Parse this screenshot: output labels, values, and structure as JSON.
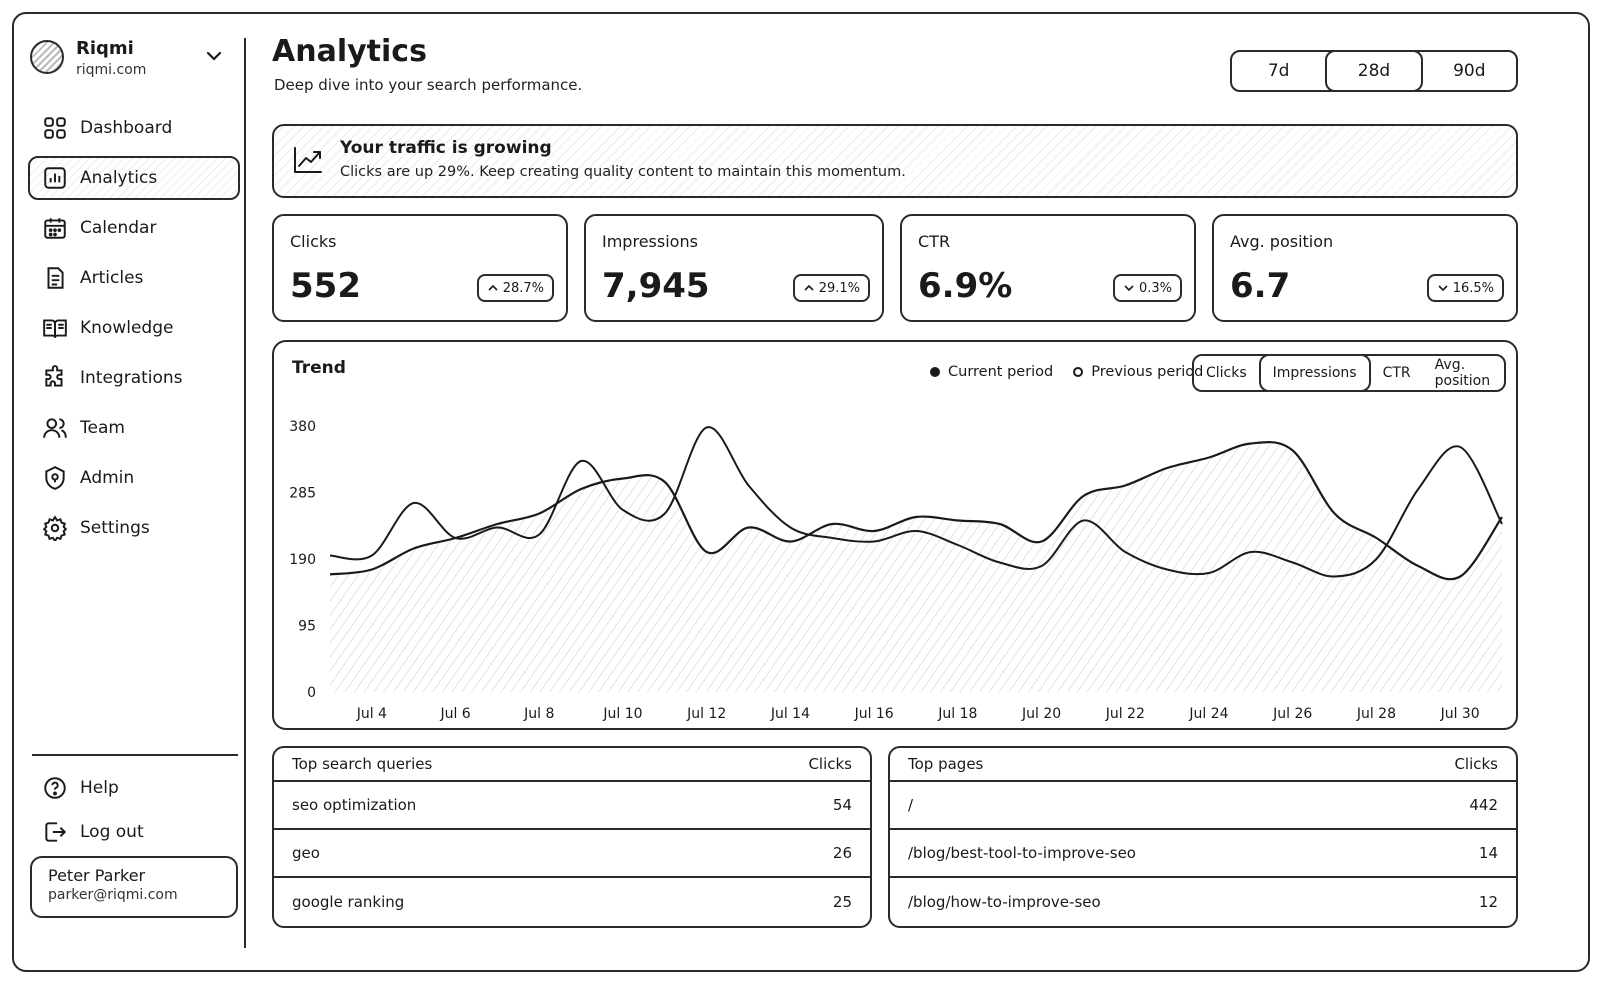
{
  "brand": {
    "name": "Riqmi",
    "domain": "riqmi.com"
  },
  "nav": [
    {
      "label": "Dashboard",
      "icon": "grid-icon"
    },
    {
      "label": "Analytics",
      "icon": "bar-chart-icon",
      "active": true
    },
    {
      "label": "Calendar",
      "icon": "calendar-icon"
    },
    {
      "label": "Articles",
      "icon": "document-icon"
    },
    {
      "label": "Knowledge",
      "icon": "book-icon"
    },
    {
      "label": "Integrations",
      "icon": "puzzle-icon"
    },
    {
      "label": "Team",
      "icon": "users-icon"
    },
    {
      "label": "Admin",
      "icon": "shield-icon"
    },
    {
      "label": "Settings",
      "icon": "gear-icon"
    }
  ],
  "bottom_nav": [
    {
      "label": "Help",
      "icon": "help-icon"
    },
    {
      "label": "Log out",
      "icon": "logout-icon"
    }
  ],
  "user": {
    "name": "Peter Parker",
    "email": "parker@riqmi.com"
  },
  "header": {
    "title": "Analytics",
    "subtitle": "Deep dive into your search performance."
  },
  "range_options": [
    "7d",
    "28d",
    "90d"
  ],
  "range_selected": "28d",
  "banner": {
    "title": "Your traffic is growing",
    "text": "Clicks are up 29%. Keep creating quality content to maintain this momentum.",
    "icon": "trending-up-icon"
  },
  "kpis": [
    {
      "label": "Clicks",
      "value": "552",
      "delta": "28.7%",
      "direction": "up"
    },
    {
      "label": "Impressions",
      "value": "7,945",
      "delta": "29.1%",
      "direction": "up"
    },
    {
      "label": "CTR",
      "value": "6.9%",
      "delta": "0.3%",
      "direction": "down"
    },
    {
      "label": "Avg. position",
      "value": "6.7",
      "delta": "16.5%",
      "direction": "down"
    }
  ],
  "trend": {
    "title": "Trend",
    "legend": {
      "current": "Current period",
      "previous": "Previous period"
    },
    "metric_tabs": [
      "Clicks",
      "Impressions",
      "CTR",
      "Avg. position"
    ],
    "metric_selected": "Impressions"
  },
  "chart_data": {
    "type": "area",
    "title": "Trend",
    "xlabel": "",
    "ylabel": "",
    "x_tick_labels": [
      "Jul 4",
      "Jul 6",
      "Jul 8",
      "Jul 10",
      "Jul 12",
      "Jul 14",
      "Jul 16",
      "Jul 18",
      "Jul 20",
      "Jul 22",
      "Jul 24",
      "Jul 26",
      "Jul 28",
      "Jul 30"
    ],
    "y_ticks": [
      0,
      95,
      190,
      285,
      380
    ],
    "ylim": [
      0,
      400
    ],
    "x": [
      3,
      4,
      5,
      6,
      7,
      8,
      9,
      10,
      11,
      12,
      13,
      14,
      15,
      16,
      17,
      18,
      19,
      20,
      21,
      22,
      23,
      24,
      25,
      26,
      27,
      28,
      29,
      30,
      31
    ],
    "series": [
      {
        "name": "Current period",
        "fill": true,
        "values": [
          168,
          175,
          205,
          220,
          240,
          255,
          290,
          305,
          300,
          200,
          235,
          215,
          240,
          230,
          250,
          245,
          240,
          215,
          280,
          295,
          320,
          335,
          355,
          345,
          255,
          220,
          180,
          165,
          250
        ]
      },
      {
        "name": "Previous period",
        "fill": false,
        "values": [
          195,
          195,
          270,
          220,
          235,
          225,
          330,
          260,
          255,
          378,
          295,
          235,
          220,
          215,
          230,
          210,
          185,
          180,
          245,
          200,
          175,
          170,
          200,
          185,
          165,
          190,
          290,
          350,
          240
        ]
      }
    ],
    "grid": false,
    "legend_position": "top-right"
  },
  "top_queries": {
    "header": "Top search queries",
    "metric": "Clicks",
    "rows": [
      {
        "label": "seo optimization",
        "value": "54"
      },
      {
        "label": "geo",
        "value": "26"
      },
      {
        "label": "google ranking",
        "value": "25"
      }
    ]
  },
  "top_pages": {
    "header": "Top pages",
    "metric": "Clicks",
    "rows": [
      {
        "label": "/",
        "value": "442"
      },
      {
        "label": "/blog/best-tool-to-improve-seo",
        "value": "14"
      },
      {
        "label": "/blog/how-to-improve-seo",
        "value": "12"
      }
    ]
  }
}
